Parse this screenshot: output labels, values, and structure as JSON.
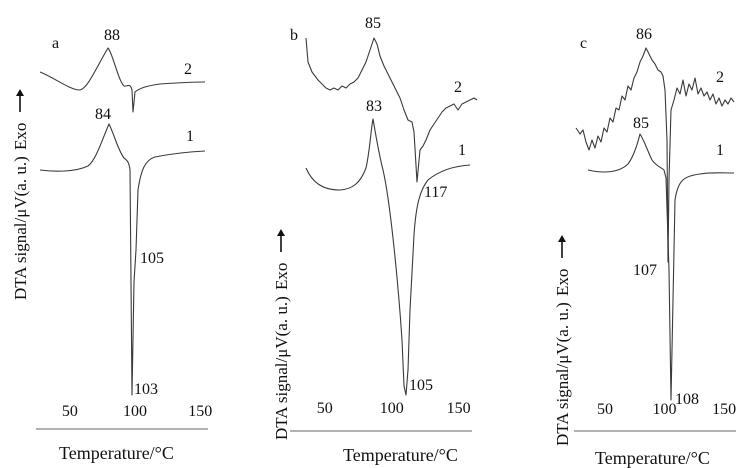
{
  "chart_data": [
    {
      "type": "line",
      "panel_label": "a",
      "xlabel": "Temperature/°C",
      "ylabel": "DTA signal/μV(a. u.)",
      "exo_label": "Exo",
      "xlim": [
        24,
        156
      ],
      "xticks": [
        50,
        100,
        150
      ],
      "series": [
        {
          "name": "2",
          "peaks": [
            {
              "x": 88,
              "label": "88",
              "kind": "exo"
            }
          ]
        },
        {
          "name": "1",
          "peaks": [
            {
              "x": 84,
              "label": "84",
              "kind": "exo"
            },
            {
              "x": 105,
              "label": "105",
              "kind": "endo"
            },
            {
              "x": 103,
              "label": "103",
              "kind": "endo"
            }
          ]
        }
      ]
    },
    {
      "type": "line",
      "panel_label": "b",
      "xlabel": "Temperature/°C",
      "ylabel": "DTA signal/μV(a. u.)",
      "exo_label": "Exo",
      "xlim": [
        24,
        160
      ],
      "xticks": [
        50,
        100,
        150
      ],
      "series": [
        {
          "name": "2",
          "peaks": [
            {
              "x": 85,
              "label": "85",
              "kind": "exo"
            },
            {
              "x": 117,
              "label": "117",
              "kind": "endo"
            }
          ]
        },
        {
          "name": "1",
          "peaks": [
            {
              "x": 83,
              "label": "83",
              "kind": "exo"
            },
            {
              "x": 105,
              "label": "105",
              "kind": "endo"
            }
          ]
        }
      ]
    },
    {
      "type": "line",
      "panel_label": "c",
      "xlabel": "Temperature/°C",
      "ylabel": "DTA signal/μV(a. u.)",
      "exo_label": "Exo",
      "xlim": [
        24,
        160
      ],
      "xticks": [
        50,
        100,
        150
      ],
      "series": [
        {
          "name": "2",
          "peaks": [
            {
              "x": 86,
              "label": "86",
              "kind": "exo"
            },
            {
              "x": 107,
              "label": "107",
              "kind": "endo"
            }
          ]
        },
        {
          "name": "1",
          "peaks": [
            {
              "x": 85,
              "label": "85",
              "kind": "exo"
            },
            {
              "x": 108,
              "label": "108",
              "kind": "endo"
            }
          ]
        }
      ]
    }
  ]
}
